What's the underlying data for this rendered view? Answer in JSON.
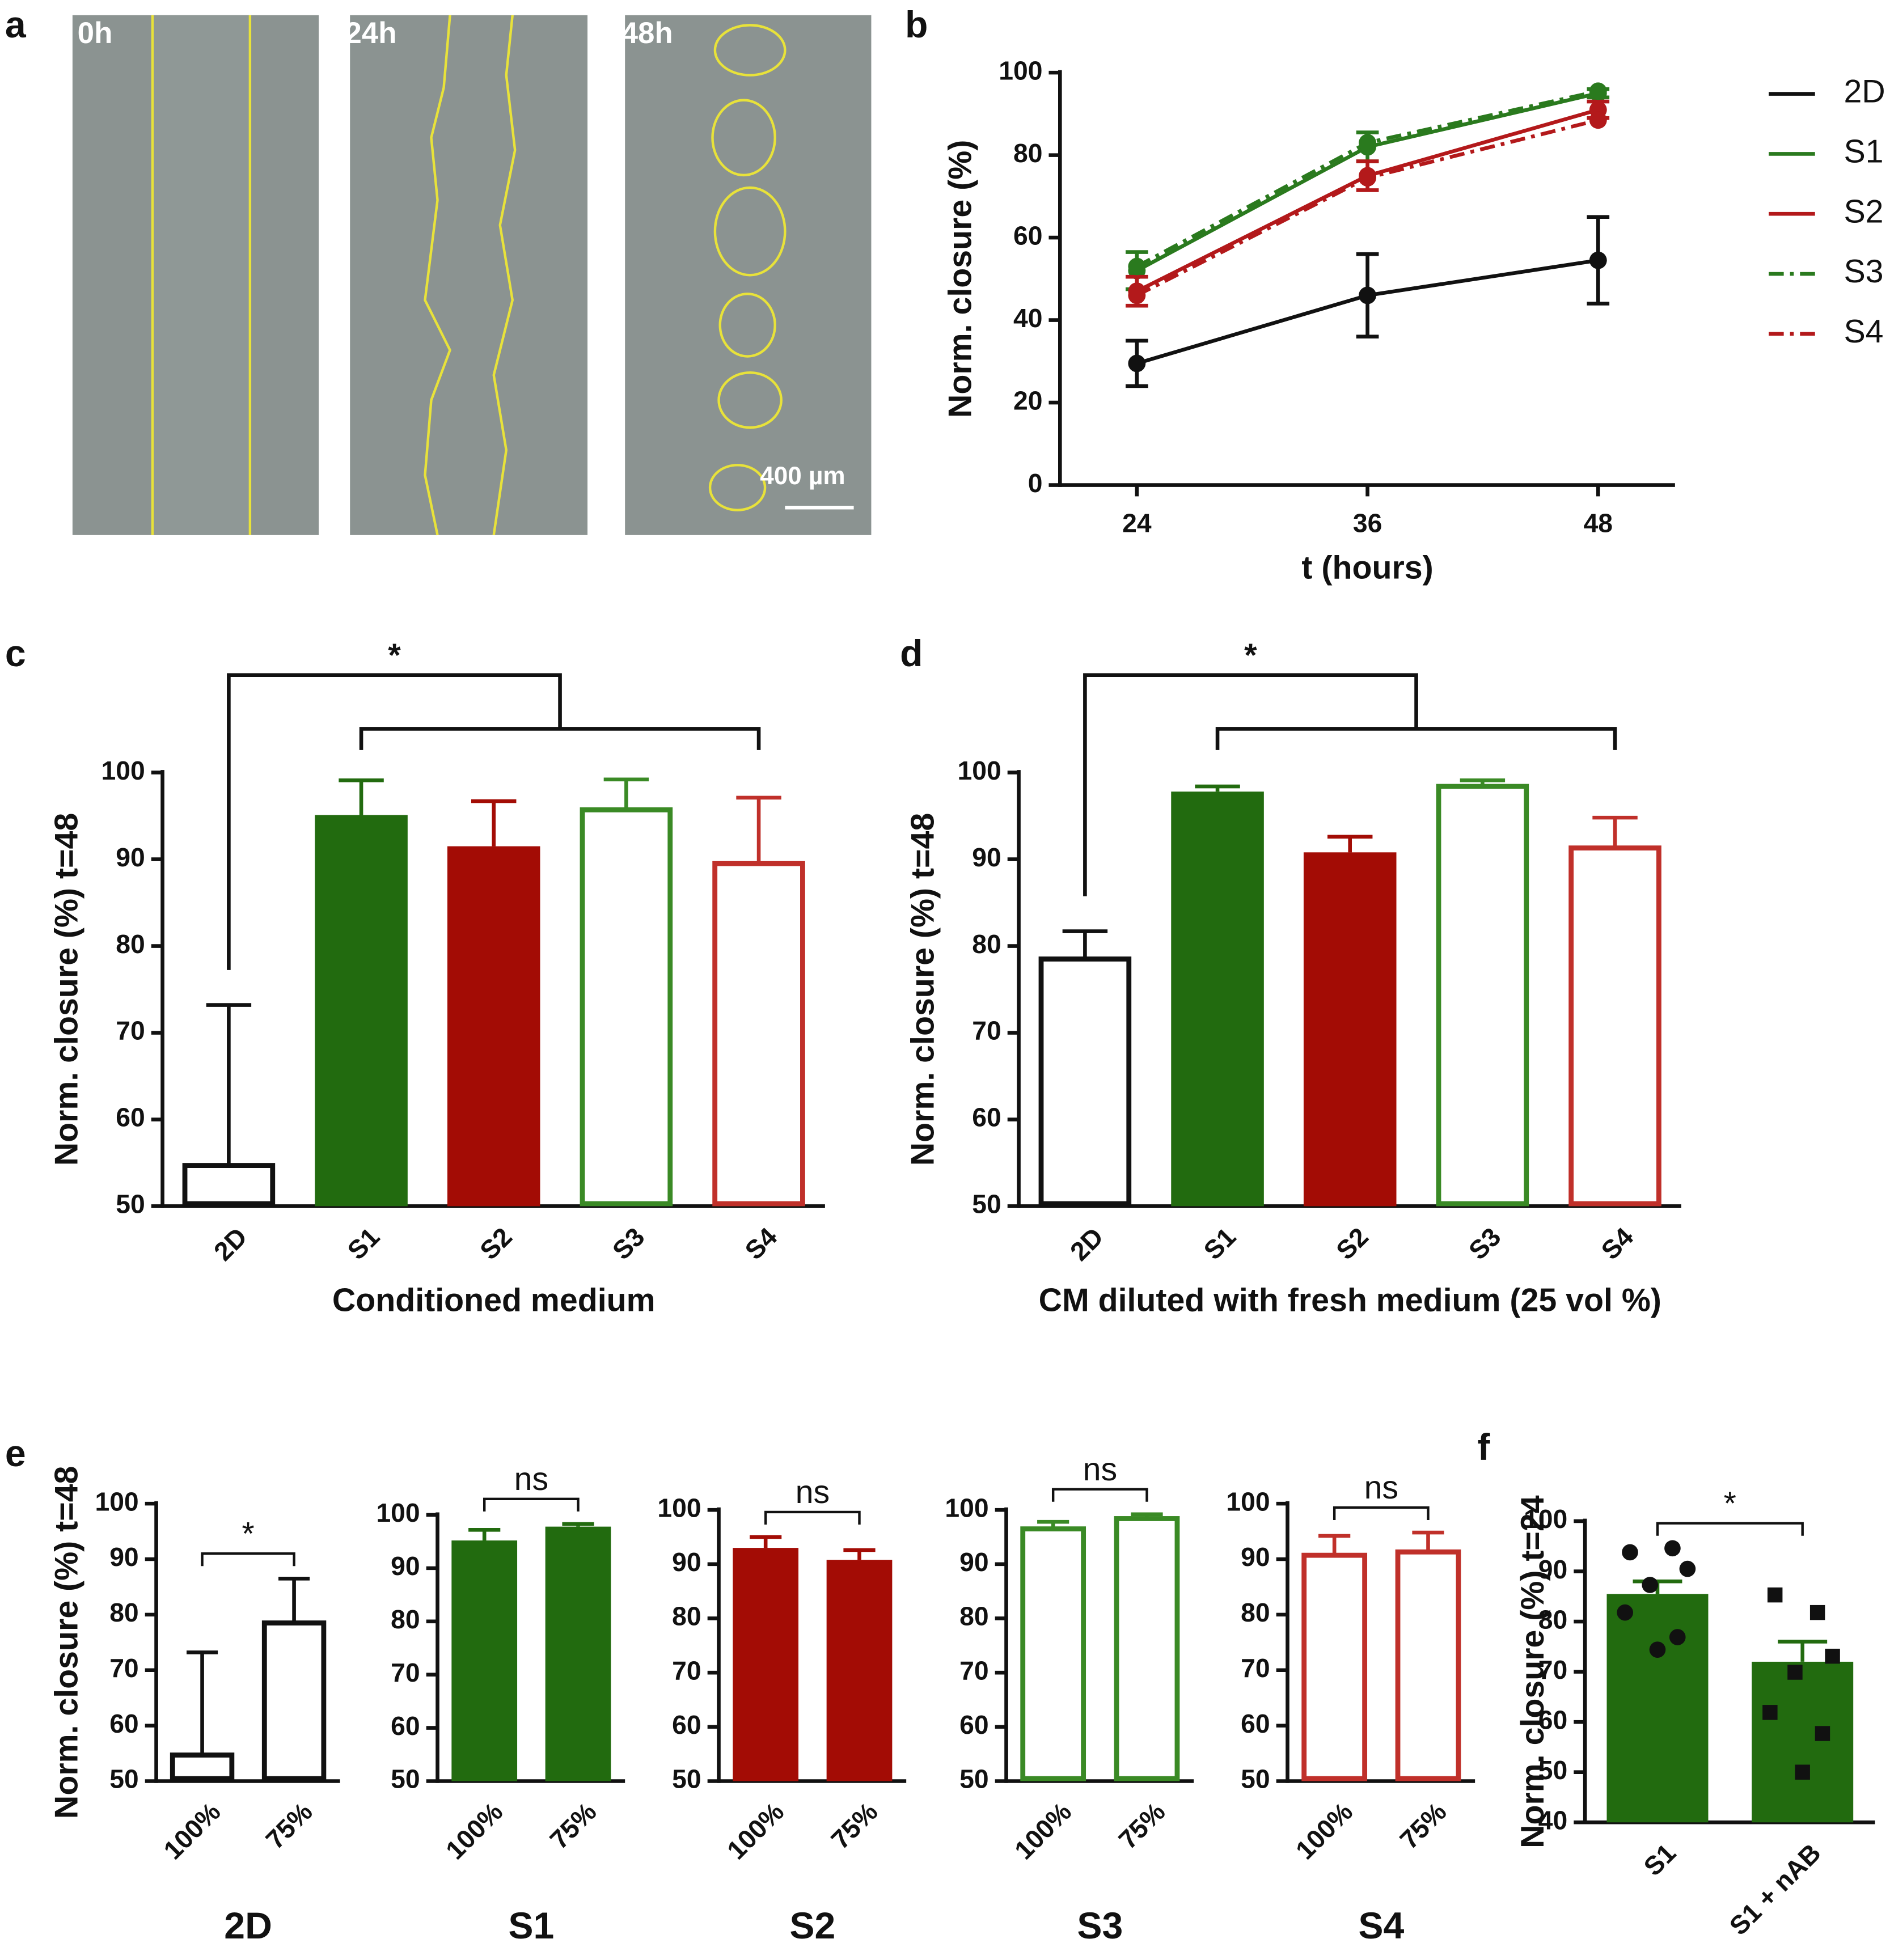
{
  "image_panel": {
    "panel": "a",
    "labels": [
      "0h",
      "24h",
      "48h"
    ],
    "scale_bar": "400 µm"
  },
  "chart_data": [
    {
      "type": "line",
      "panel": "b",
      "xlabel": "t (hours)",
      "ylabel": "Norm. closure (%)",
      "x": [
        24,
        36,
        48
      ],
      "xlim": [
        20,
        52
      ],
      "xticks": [
        24,
        36,
        48
      ],
      "ylim": [
        0,
        100
      ],
      "yticks": [
        0,
        20,
        40,
        60,
        80,
        100
      ],
      "legend": "right",
      "series": [
        {
          "name": "2D",
          "color": "#111111",
          "dash": false,
          "values": [
            29.5,
            46,
            54.5
          ],
          "errors": [
            5.5,
            10,
            10.5
          ]
        },
        {
          "name": "S1",
          "color": "#2a7a1e",
          "dash": false,
          "values": [
            52,
            82,
            95
          ],
          "errors": [
            4.5,
            3.5,
            1
          ]
        },
        {
          "name": "S2",
          "color": "#b3191b",
          "dash": false,
          "values": [
            47,
            75,
            91
          ],
          "errors": [
            3.5,
            3.5,
            2
          ]
        },
        {
          "name": "S3",
          "color": "#2a7a1e",
          "dash": true,
          "values": [
            53,
            83,
            95.5
          ]
        },
        {
          "name": "S4",
          "color": "#b3191b",
          "dash": true,
          "values": [
            46,
            74.5,
            88.5
          ]
        }
      ]
    },
    {
      "type": "bar",
      "panel": "c",
      "xlabel": "Conditioned medium",
      "ylabel": "Norm.  closure (%) t=48",
      "annotation": "*",
      "categories": [
        "2D",
        "S1",
        "S2",
        "S3",
        "S4"
      ],
      "values": [
        54.7,
        95.1,
        91.5,
        95.7,
        89.5
      ],
      "errors": [
        18.5,
        4,
        5.2,
        3.5,
        7.6
      ],
      "colors": [
        "#111111",
        "#226b0f",
        "#a30c05",
        "#3a8a25",
        "#c0302a"
      ],
      "filled": [
        false,
        true,
        true,
        false,
        false
      ],
      "ylim": [
        50,
        100
      ],
      "yticks": [
        50,
        60,
        70,
        80,
        90,
        100
      ]
    },
    {
      "type": "bar",
      "panel": "d",
      "xlabel": "CM diluted with fresh medium (25 vol %)",
      "ylabel": "Norm.  closure (%) t=48",
      "annotation": "*",
      "categories": [
        "2D",
        "S1",
        "S2",
        "S3",
        "S4"
      ],
      "values": [
        78.5,
        97.8,
        90.8,
        98.4,
        91.3
      ],
      "errors": [
        3.2,
        0.6,
        1.8,
        0.7,
        3.5
      ],
      "colors": [
        "#111111",
        "#226b0f",
        "#a30c05",
        "#3a8a25",
        "#c0302a"
      ],
      "filled": [
        false,
        true,
        true,
        false,
        false
      ],
      "ylim": [
        50,
        100
      ],
      "yticks": [
        50,
        60,
        70,
        80,
        90,
        100
      ]
    },
    {
      "type": "bar",
      "panel": "e",
      "xlabel": "2D",
      "ylabel": "Norm. closure (%) t=48",
      "annotation": "*",
      "categories": [
        "100%",
        "75%"
      ],
      "values": [
        54.7,
        78.5
      ],
      "errors": [
        18.5,
        8
      ],
      "colors": [
        "#111111",
        "#111111"
      ],
      "filled": [
        false,
        false
      ],
      "ylim": [
        50,
        100
      ],
      "yticks": [
        50,
        60,
        70,
        80,
        90,
        100
      ]
    },
    {
      "type": "bar",
      "xlabel": "S1",
      "annotation": "ns",
      "categories": [
        "100%",
        "75%"
      ],
      "values": [
        95.2,
        97.8
      ],
      "errors": [
        2,
        0.5
      ],
      "colors": [
        "#226b0f",
        "#226b0f"
      ],
      "filled": [
        true,
        true
      ],
      "ylim": [
        50,
        100
      ],
      "yticks": [
        50,
        60,
        70,
        80,
        90,
        100
      ]
    },
    {
      "type": "bar",
      "xlabel": "S2",
      "annotation": "ns",
      "categories": [
        "100%",
        "75%"
      ],
      "values": [
        93,
        90.8
      ],
      "errors": [
        2,
        1.8
      ],
      "colors": [
        "#a30c05",
        "#a30c05"
      ],
      "filled": [
        true,
        true
      ],
      "ylim": [
        50,
        100
      ],
      "yticks": [
        50,
        60,
        70,
        80,
        90,
        100
      ]
    },
    {
      "type": "bar",
      "xlabel": "S3",
      "annotation": "ns",
      "categories": [
        "100%",
        "75%"
      ],
      "values": [
        96.5,
        98.4
      ],
      "errors": [
        1.3,
        0.8
      ],
      "colors": [
        "#3a8a25",
        "#3a8a25"
      ],
      "filled": [
        false,
        false
      ],
      "ylim": [
        50,
        100
      ],
      "yticks": [
        50,
        60,
        70,
        80,
        90,
        100
      ]
    },
    {
      "type": "bar",
      "xlabel": "S4",
      "annotation": "ns",
      "categories": [
        "100%",
        "75%"
      ],
      "values": [
        90.7,
        91.3
      ],
      "errors": [
        3.5,
        3.5
      ],
      "colors": [
        "#c0302a",
        "#c0302a"
      ],
      "filled": [
        false,
        false
      ],
      "ylim": [
        50,
        100
      ],
      "yticks": [
        50,
        60,
        70,
        80,
        90,
        100
      ]
    },
    {
      "type": "bar",
      "panel": "f",
      "ylabel": "Norm. closure (%) t=24",
      "annotation": "*",
      "categories": [
        "S1",
        "S1 + nAB"
      ],
      "values": [
        85.5,
        72
      ],
      "errors": [
        2.5,
        4
      ],
      "colors": [
        "#226b0f",
        "#226b0f"
      ],
      "filled": [
        true,
        true
      ],
      "ylim": [
        40,
        100
      ],
      "yticks": [
        40,
        50,
        60,
        70,
        80,
        90,
        100
      ],
      "markers": [
        "circle",
        "square"
      ],
      "points": [
        [
          93.8,
          94.6,
          90.5,
          87.3,
          81.8,
          76.9,
          74.4
        ],
        [
          85.3,
          81.8,
          73.1,
          69.9,
          61.9,
          57.7,
          50
        ]
      ]
    }
  ]
}
